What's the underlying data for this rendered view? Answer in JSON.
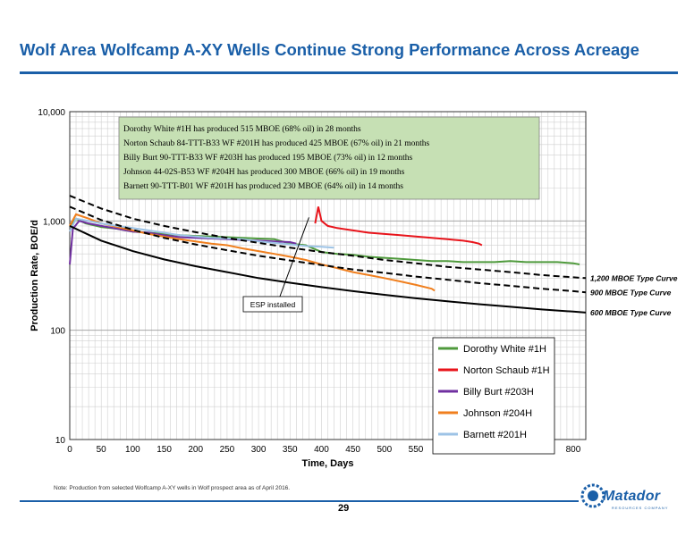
{
  "page": {
    "title": "Wolf Area Wolfcamp A-XY Wells Continue Strong Performance Across Acreage",
    "note": "Note:   Production from selected Wolfcamp A-XY wells in Wolf prospect area as of April 2016.",
    "page_number": "29",
    "logo_text": "Matador",
    "logo_subtext": "RESOURCES COMPANY",
    "brand_color": "#1a5fa8"
  },
  "chart_data": {
    "type": "line",
    "xlabel": "Time, Days",
    "ylabel": "Production Rate, BOE/d",
    "x_scale": "linear",
    "y_scale": "log",
    "xlim": [
      0,
      820
    ],
    "ylim": [
      10,
      10000
    ],
    "x_ticks": [
      0,
      50,
      100,
      150,
      200,
      250,
      300,
      350,
      400,
      450,
      500,
      550,
      600,
      650,
      700,
      750,
      800
    ],
    "y_ticks": [
      {
        "value": 10,
        "label": "10"
      },
      {
        "value": 100,
        "label": "100"
      },
      {
        "value": 1000,
        "label": "1,000"
      },
      {
        "value": 10000,
        "label": "10,000"
      }
    ],
    "grid": true,
    "legend_position": "lower-right",
    "series": [
      {
        "name": "Dorothy White #1H",
        "color": "#4f9a3c",
        "points": [
          [
            0,
            900
          ],
          [
            10,
            1050
          ],
          [
            25,
            950
          ],
          [
            50,
            880
          ],
          [
            75,
            850
          ],
          [
            100,
            800
          ],
          [
            125,
            780
          ],
          [
            150,
            760
          ],
          [
            175,
            740
          ],
          [
            200,
            730
          ],
          [
            225,
            720
          ],
          [
            250,
            710
          ],
          [
            275,
            700
          ],
          [
            300,
            690
          ],
          [
            325,
            680
          ],
          [
            350,
            620
          ],
          [
            375,
            600
          ],
          [
            400,
            520
          ],
          [
            425,
            500
          ],
          [
            450,
            490
          ],
          [
            475,
            470
          ],
          [
            500,
            460
          ],
          [
            525,
            450
          ],
          [
            550,
            440
          ],
          [
            575,
            430
          ],
          [
            600,
            430
          ],
          [
            625,
            420
          ],
          [
            650,
            420
          ],
          [
            675,
            420
          ],
          [
            700,
            430
          ],
          [
            725,
            420
          ],
          [
            750,
            420
          ],
          [
            775,
            420
          ],
          [
            800,
            410
          ],
          [
            810,
            400
          ]
        ]
      },
      {
        "name": "Norton Schaub #1H",
        "color": "#e8141b",
        "points": [
          [
            390,
            950
          ],
          [
            395,
            1350
          ],
          [
            400,
            1000
          ],
          [
            410,
            900
          ],
          [
            425,
            860
          ],
          [
            450,
            820
          ],
          [
            475,
            780
          ],
          [
            500,
            760
          ],
          [
            525,
            740
          ],
          [
            550,
            720
          ],
          [
            575,
            700
          ],
          [
            600,
            680
          ],
          [
            625,
            660
          ],
          [
            640,
            640
          ],
          [
            650,
            620
          ],
          [
            655,
            600
          ]
        ]
      },
      {
        "name": "Billy Burt #203H",
        "color": "#7030a0",
        "points": [
          [
            0,
            400
          ],
          [
            5,
            850
          ],
          [
            15,
            1000
          ],
          [
            30,
            950
          ],
          [
            50,
            900
          ],
          [
            75,
            850
          ],
          [
            100,
            800
          ],
          [
            125,
            780
          ],
          [
            150,
            740
          ],
          [
            175,
            710
          ],
          [
            200,
            700
          ],
          [
            225,
            690
          ],
          [
            250,
            680
          ],
          [
            275,
            670
          ],
          [
            300,
            660
          ],
          [
            325,
            650
          ],
          [
            350,
            640
          ],
          [
            360,
            620
          ]
        ]
      },
      {
        "name": "Johnson #204H",
        "color": "#f07f1e",
        "points": [
          [
            0,
            900
          ],
          [
            10,
            1150
          ],
          [
            30,
            1050
          ],
          [
            50,
            950
          ],
          [
            75,
            880
          ],
          [
            100,
            820
          ],
          [
            125,
            760
          ],
          [
            150,
            720
          ],
          [
            175,
            680
          ],
          [
            200,
            650
          ],
          [
            225,
            620
          ],
          [
            250,
            600
          ],
          [
            275,
            560
          ],
          [
            300,
            530
          ],
          [
            325,
            500
          ],
          [
            350,
            470
          ],
          [
            375,
            440
          ],
          [
            400,
            400
          ],
          [
            425,
            370
          ],
          [
            450,
            340
          ],
          [
            475,
            320
          ],
          [
            500,
            300
          ],
          [
            525,
            280
          ],
          [
            550,
            260
          ],
          [
            575,
            240
          ],
          [
            580,
            230
          ]
        ]
      },
      {
        "name": "Barnett #201H",
        "color": "#9dc3e6",
        "points": [
          [
            0,
            800
          ],
          [
            10,
            1050
          ],
          [
            30,
            1000
          ],
          [
            50,
            950
          ],
          [
            75,
            900
          ],
          [
            100,
            860
          ],
          [
            125,
            820
          ],
          [
            150,
            780
          ],
          [
            175,
            740
          ],
          [
            200,
            720
          ],
          [
            225,
            700
          ],
          [
            250,
            690
          ],
          [
            275,
            680
          ],
          [
            300,
            650
          ],
          [
            325,
            630
          ],
          [
            350,
            610
          ],
          [
            375,
            590
          ],
          [
            400,
            580
          ],
          [
            420,
            570
          ]
        ]
      }
    ],
    "type_curves": [
      {
        "label": "1,200 MBOE Type Curve",
        "style": "dashed",
        "color": "#000000",
        "points": [
          [
            0,
            1700
          ],
          [
            50,
            1300
          ],
          [
            100,
            1050
          ],
          [
            150,
            900
          ],
          [
            200,
            790
          ],
          [
            250,
            700
          ],
          [
            300,
            630
          ],
          [
            350,
            570
          ],
          [
            400,
            520
          ],
          [
            450,
            480
          ],
          [
            500,
            440
          ],
          [
            550,
            410
          ],
          [
            600,
            380
          ],
          [
            650,
            360
          ],
          [
            700,
            340
          ],
          [
            750,
            320
          ],
          [
            800,
            305
          ],
          [
            820,
            300
          ]
        ]
      },
      {
        "label": "900 MBOE Type Curve",
        "style": "dashed",
        "color": "#000000",
        "points": [
          [
            0,
            1350
          ],
          [
            50,
            1020
          ],
          [
            100,
            830
          ],
          [
            150,
            700
          ],
          [
            200,
            610
          ],
          [
            250,
            540
          ],
          [
            300,
            480
          ],
          [
            350,
            435
          ],
          [
            400,
            395
          ],
          [
            450,
            360
          ],
          [
            500,
            335
          ],
          [
            550,
            310
          ],
          [
            600,
            290
          ],
          [
            650,
            270
          ],
          [
            700,
            255
          ],
          [
            750,
            240
          ],
          [
            800,
            228
          ],
          [
            820,
            222
          ]
        ]
      },
      {
        "label": "600 MBOE Type Curve",
        "style": "solid",
        "color": "#000000",
        "points": [
          [
            0,
            900
          ],
          [
            50,
            660
          ],
          [
            100,
            530
          ],
          [
            150,
            445
          ],
          [
            200,
            385
          ],
          [
            250,
            340
          ],
          [
            300,
            300
          ],
          [
            350,
            272
          ],
          [
            400,
            248
          ],
          [
            450,
            228
          ],
          [
            500,
            211
          ],
          [
            550,
            196
          ],
          [
            600,
            184
          ],
          [
            650,
            173
          ],
          [
            700,
            164
          ],
          [
            750,
            155
          ],
          [
            800,
            148
          ],
          [
            820,
            145
          ]
        ]
      }
    ],
    "annotations": {
      "summary_lines": [
        "Dorothy White #1H has produced 515 MBOE (68% oil) in 28 months",
        "Norton Schaub 84-TTT-B33 WF #201H has produced 425 MBOE (67% oil) in 21 months",
        "Billy Burt 90-TTT-B33 WF #203H has produced 195 MBOE (73% oil) in 12 months",
        "Johnson 44-02S-B53 WF #204H has produced 300 MBOE (66% oil) in 19 months",
        "Barnett 90-TTT-B01 WF #201H has produced 230 MBOE (64% oil) in 14 months"
      ],
      "callout": {
        "text": "ESP installed",
        "x": 390,
        "y": 1350
      },
      "summary_box_color": "#c6e0b4"
    }
  }
}
